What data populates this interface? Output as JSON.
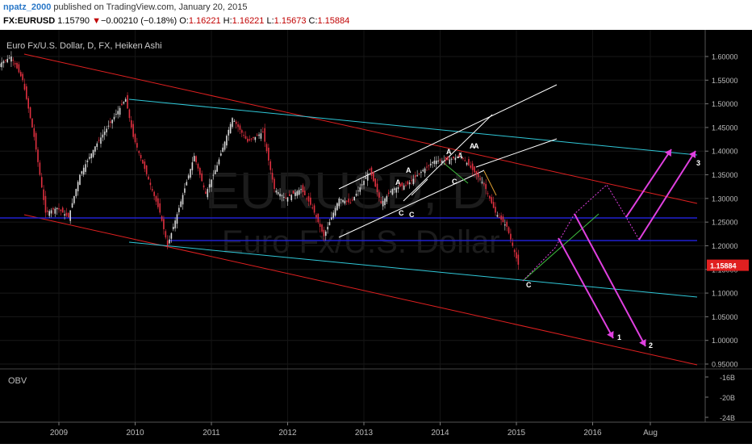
{
  "header": {
    "author": "npatz_2000",
    "published_text": "published on TradingView.com, January 20, 2015",
    "symbol": "FX:EURUSD",
    "last": "1.15790",
    "arrow": "▼",
    "change": "−0.00210 (−0.18%)",
    "o_label": "O:",
    "o_value": "1.16221",
    "h_label": "H:",
    "h_value": "1.16221",
    "l_label": "L:",
    "l_value": "1.15673",
    "c_label": "C:",
    "c_value": "1.15884"
  },
  "chart": {
    "legend": "Euro Fx/U.S. Dollar, D, FX, Heiken Ashi",
    "watermark_symbol": "EURUSD, D",
    "watermark_name": "Euro Fx/U.S. Dollar",
    "price_tag": "1.15884",
    "obv_label": "OBV",
    "colors": {
      "background": "#000000",
      "channel": "#e02020",
      "inner_channel": "#30c8d8",
      "support": "#2020d0",
      "projection": "#e040e0",
      "pattern": "#ffffff",
      "green": "#40c040",
      "bull_candle": "#d8d8d8",
      "bear_candle": "#e03040"
    }
  },
  "chart_data": {
    "type": "line",
    "title": "Euro Fx/U.S. Dollar, D, FX, Heiken Ashi",
    "x_ticks": [
      "2009",
      "2010",
      "2011",
      "2012",
      "2013",
      "2014",
      "2015",
      "2016",
      "Aug"
    ],
    "y_ticks": [
      "1.60000",
      "1.55000",
      "1.50000",
      "1.45000",
      "1.40000",
      "1.35000",
      "1.30000",
      "1.25000",
      "1.20000",
      "1.15000",
      "1.10000",
      "1.05000",
      "1.00000",
      "0.95000"
    ],
    "y_range": [
      0.93,
      1.62
    ],
    "obv_ticks": [
      "-16B",
      "-20B",
      "-24B"
    ],
    "series": [
      {
        "values": [
          [
            2008.2,
            1.58
          ],
          [
            2008.4,
            1.6
          ],
          [
            2008.55,
            1.55
          ],
          [
            2008.7,
            1.43
          ],
          [
            2008.85,
            1.27
          ],
          [
            2009.0,
            1.28
          ],
          [
            2009.15,
            1.26
          ],
          [
            2009.3,
            1.35
          ],
          [
            2009.5,
            1.41
          ],
          [
            2009.7,
            1.46
          ],
          [
            2009.9,
            1.51
          ],
          [
            2010.0,
            1.43
          ],
          [
            2010.2,
            1.34
          ],
          [
            2010.35,
            1.27
          ],
          [
            2010.45,
            1.2
          ],
          [
            2010.6,
            1.28
          ],
          [
            2010.8,
            1.39
          ],
          [
            2010.95,
            1.31
          ],
          [
            2011.1,
            1.37
          ],
          [
            2011.3,
            1.47
          ],
          [
            2011.5,
            1.42
          ],
          [
            2011.7,
            1.44
          ],
          [
            2011.85,
            1.32
          ],
          [
            2012.0,
            1.3
          ],
          [
            2012.2,
            1.32
          ],
          [
            2012.35,
            1.28
          ],
          [
            2012.5,
            1.22
          ],
          [
            2012.7,
            1.3
          ],
          [
            2012.85,
            1.29
          ],
          [
            2013.0,
            1.33
          ],
          [
            2013.1,
            1.36
          ],
          [
            2013.25,
            1.29
          ],
          [
            2013.4,
            1.32
          ],
          [
            2013.6,
            1.33
          ],
          [
            2013.8,
            1.36
          ],
          [
            2013.95,
            1.38
          ],
          [
            2014.1,
            1.38
          ],
          [
            2014.3,
            1.39
          ],
          [
            2014.45,
            1.36
          ],
          [
            2014.6,
            1.33
          ],
          [
            2014.75,
            1.27
          ],
          [
            2014.9,
            1.24
          ],
          [
            2015.05,
            1.16
          ]
        ]
      }
    ],
    "annotations": [
      "A",
      "A",
      "A",
      "A",
      "A",
      "A",
      "C",
      "C",
      "C",
      "C",
      "1",
      "2",
      "3"
    ]
  }
}
